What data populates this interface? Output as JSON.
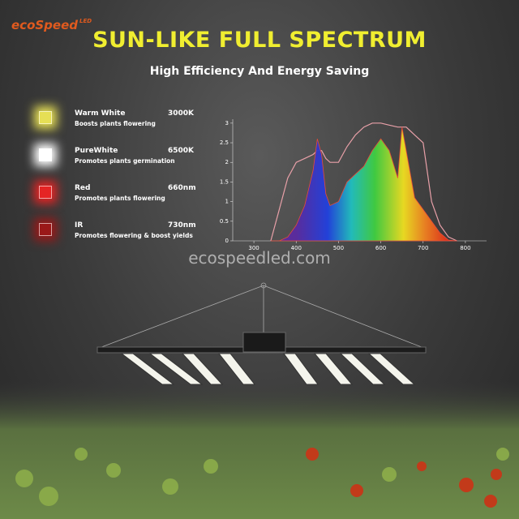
{
  "logo": {
    "brand": "ecoSpeed",
    "suffix": "LED"
  },
  "header": {
    "title": "SUN-LIKE FULL SPECTRUM",
    "subtitle": "High Efficiency And Energy Saving"
  },
  "legend": [
    {
      "name": "Warm White",
      "description": "Boosts plants flowering",
      "spec": "3000K",
      "color": "#e6df55"
    },
    {
      "name": "PureWhite",
      "description": "Promotes plants germination",
      "spec": "6500K",
      "color": "#ffffff"
    },
    {
      "name": "Red",
      "description": "Promotes plants flowering",
      "spec": "660nm",
      "color": "#e52424"
    },
    {
      "name": "IR",
      "description": "Promotes flowering & boost yields",
      "spec": "730nm",
      "color": "#9a1818"
    }
  ],
  "watermark": "ecospeedled.com",
  "chart_data": {
    "type": "area",
    "x": [
      340,
      360,
      380,
      400,
      420,
      440,
      450,
      460,
      470,
      480,
      500,
      520,
      540,
      560,
      580,
      600,
      620,
      640,
      650,
      660,
      680,
      700,
      720,
      740,
      760,
      780
    ],
    "series": [
      {
        "color": "#e84a3a",
        "values": [
          0,
          0,
          0.1,
          0.4,
          0.9,
          1.8,
          2.6,
          2.2,
          1.2,
          0.9,
          1.0,
          1.5,
          1.7,
          1.9,
          2.3,
          2.6,
          2.3,
          1.6,
          2.9,
          2.3,
          1.1,
          0.8,
          0.5,
          0.2,
          0.02,
          0
        ]
      },
      {
        "color": "#e8a0a8",
        "values": [
          0,
          0.8,
          1.6,
          2.0,
          2.1,
          2.2,
          2.3,
          2.3,
          2.1,
          2.0,
          2.0,
          2.4,
          2.7,
          2.9,
          3.0,
          3.0,
          2.95,
          2.9,
          2.9,
          2.9,
          2.7,
          2.5,
          1.0,
          0.4,
          0.1,
          0
        ]
      }
    ],
    "xlim": [
      250,
      850
    ],
    "ylim": [
      0,
      3.1
    ],
    "xticks": [
      300,
      400,
      500,
      600,
      700,
      800
    ],
    "yticks": [
      0,
      0.5,
      1,
      1.5,
      2,
      2.5,
      3
    ]
  }
}
